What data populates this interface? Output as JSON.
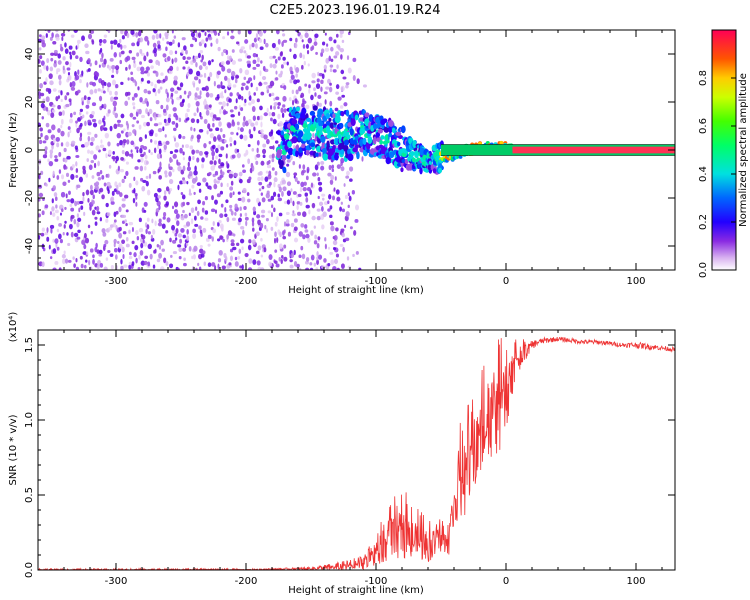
{
  "title": "C2E5.2023.196.01.19.R24",
  "chart_data": [
    {
      "type": "heatmap",
      "xlabel": "Height of straight line (km)",
      "ylabel": "Frequency (Hz)",
      "xlim": [
        -360,
        130
      ],
      "ylim": [
        -50,
        50
      ],
      "xticks": [
        -300,
        -200,
        -100,
        0,
        100
      ],
      "yticks": [
        -40,
        -20,
        0,
        20,
        40
      ],
      "grid": false,
      "colorbar": {
        "label": "Normalized spectral amplitude",
        "range": [
          0.0,
          1.0
        ],
        "ticks": [
          0.0,
          0.2,
          0.4,
          0.6,
          0.8
        ]
      },
      "regions": [
        {
          "x": [
            -360,
            -110
          ],
          "freq": [
            -50,
            50
          ],
          "amplitude": "low (noise, 0.0-0.2)"
        },
        {
          "x": [
            -175,
            -50
          ],
          "freq": [
            -15,
            15
          ],
          "amplitude": "medium (0.2-0.5)"
        },
        {
          "x": [
            -50,
            5
          ],
          "freq": [
            -3,
            3
          ],
          "amplitude": "medium-high (0.4-0.8)"
        },
        {
          "x": [
            5,
            130
          ],
          "freq": [
            -1,
            1
          ],
          "amplitude": "high (0.9-1.0)"
        }
      ],
      "ridge": [
        [
          -170,
          7
        ],
        [
          -150,
          8
        ],
        [
          -130,
          6
        ],
        [
          -110,
          7
        ],
        [
          -100,
          5
        ],
        [
          -90,
          3
        ],
        [
          -80,
          0
        ],
        [
          -70,
          -3
        ],
        [
          -60,
          -4
        ],
        [
          -50,
          -3
        ],
        [
          -40,
          -2
        ],
        [
          -30,
          0
        ],
        [
          -20,
          1
        ],
        [
          -10,
          1
        ],
        [
          0,
          1
        ],
        [
          10,
          0
        ],
        [
          130,
          0
        ]
      ]
    },
    {
      "type": "line",
      "xlabel": "Height of straight line (km)",
      "ylabel": "SNR (10 * v/v)",
      "y_multiplier": "(x10⁴)",
      "xlim": [
        -360,
        130
      ],
      "ylim": [
        0.0,
        1.6
      ],
      "xticks": [
        -300,
        -200,
        -100,
        0,
        100
      ],
      "yticks": [
        0.0,
        0.5,
        1.0,
        1.5
      ],
      "grid": false,
      "color": "#ee3333",
      "series": [
        {
          "x": [
            -360,
            -300,
            -250,
            -200,
            -150,
            -130,
            -120,
            -110,
            -100,
            -90,
            -80,
            -70,
            -60,
            -50,
            -45,
            -40,
            -35,
            -30,
            -25,
            -20,
            -15,
            -10,
            -5,
            0,
            5,
            10,
            15,
            20,
            25,
            30,
            40,
            50,
            60,
            70,
            80,
            90,
            100,
            110,
            120,
            130
          ],
          "values": [
            0.0,
            0.0,
            0.0,
            0.0,
            0.01,
            0.02,
            0.03,
            0.05,
            0.1,
            0.2,
            0.25,
            0.2,
            0.15,
            0.2,
            0.15,
            0.4,
            0.55,
            0.65,
            0.75,
            0.85,
            0.95,
            1.0,
            1.05,
            1.15,
            1.3,
            1.4,
            1.45,
            1.5,
            1.52,
            1.53,
            1.54,
            1.53,
            1.52,
            1.52,
            1.51,
            1.5,
            1.5,
            1.49,
            1.48,
            1.47
          ],
          "noise": [
            0.003,
            0.003,
            0.004,
            0.004,
            0.01,
            0.03,
            0.04,
            0.05,
            0.08,
            0.14,
            0.17,
            0.14,
            0.1,
            0.1,
            0.08,
            0.2,
            0.25,
            0.25,
            0.25,
            0.28,
            0.3,
            0.3,
            0.28,
            0.22,
            0.15,
            0.08,
            0.05,
            0.03,
            0.02,
            0.02,
            0.015,
            0.015,
            0.015,
            0.015,
            0.015,
            0.015,
            0.02,
            0.02,
            0.015,
            0.015
          ]
        }
      ]
    }
  ]
}
